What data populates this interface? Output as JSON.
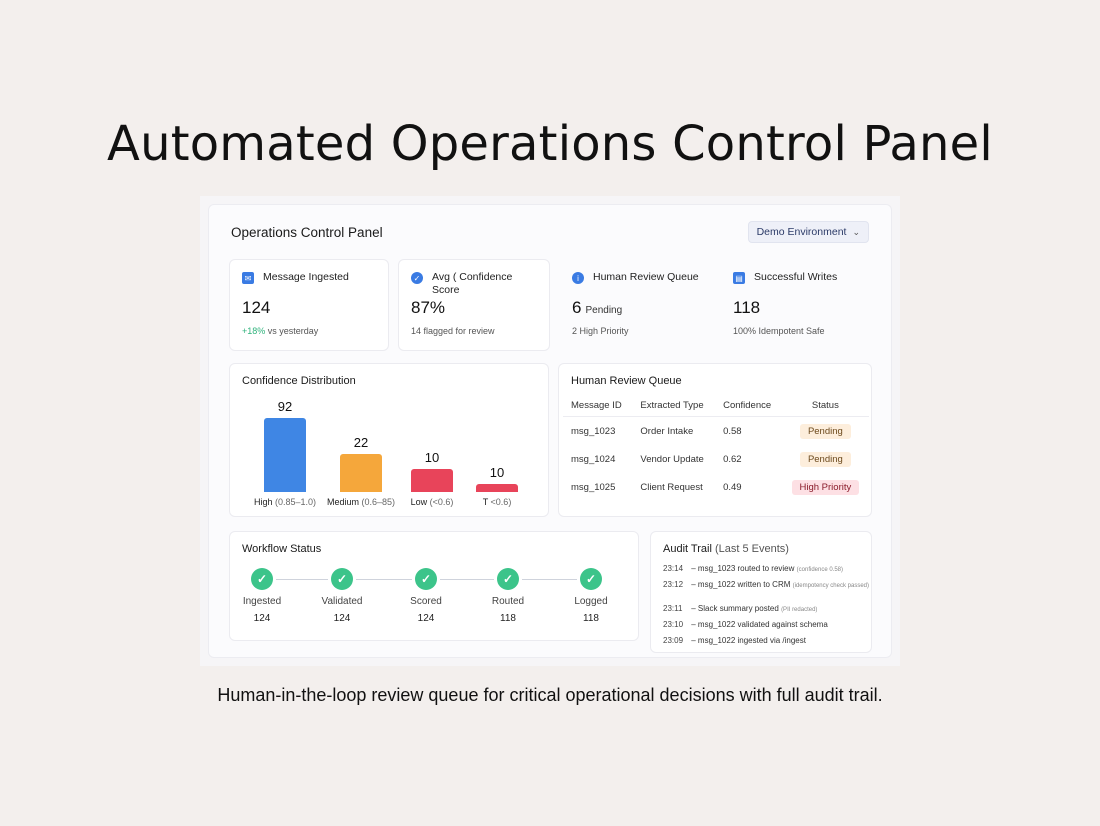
{
  "page": {
    "title": "Automated Operations Control Panel",
    "caption": "Human-in-the-loop review queue for critical operational decisions with full audit trail."
  },
  "panel": {
    "title": "Operations Control Panel",
    "environment": "Demo Environment"
  },
  "kpis": [
    {
      "label": "Message Ingested",
      "value": "124",
      "unit": "",
      "sub_highlight": "+18%",
      "sub": " vs yesterday",
      "icon": "mail-icon"
    },
    {
      "label": "Avg ( Confidence Score",
      "value": "87%",
      "unit": "",
      "sub_highlight": "",
      "sub": "14 flagged for review",
      "icon": "check-circle-icon"
    },
    {
      "label": "Human Review Queue",
      "value": "6",
      "unit": "Pending",
      "sub_highlight": "",
      "sub": "2 High Priority",
      "icon": "info-icon"
    },
    {
      "label": "Successful Writes",
      "value": "118",
      "unit": "",
      "sub_highlight": "",
      "sub": "100% Idempotent Safe",
      "icon": "document-icon"
    }
  ],
  "confidence": {
    "title": "Confidence Distribution"
  },
  "chart_data": {
    "type": "bar",
    "title": "Confidence Distribution",
    "categories": [
      "High",
      "Medium",
      "Low",
      "T"
    ],
    "ranges": [
      "(0.85–1.0)",
      "(0.6–85)",
      "(<0.6)",
      "<0.6)"
    ],
    "values": [
      92,
      22,
      10,
      10
    ],
    "colors": [
      "#3f86e4",
      "#f5a73b",
      "#e8445a",
      "#e8445a"
    ],
    "xlabel": "",
    "ylabel": "",
    "grid": false
  },
  "review_queue": {
    "title": "Human Review Queue",
    "headers": [
      "Message ID",
      "Extracted Type",
      "Confidence",
      "Status"
    ],
    "rows": [
      {
        "id": "msg_1023",
        "type": "Order Intake",
        "confidence": "0.58",
        "status": "Pending",
        "status_kind": "pending"
      },
      {
        "id": "msg_1024",
        "type": "Vendor Update",
        "confidence": "0.62",
        "status": "Pending",
        "status_kind": "pending"
      },
      {
        "id": "msg_1025",
        "type": "Client Request",
        "confidence": "0.49",
        "status": "High Priority",
        "status_kind": "high"
      }
    ]
  },
  "workflow": {
    "title": "Workflow Status",
    "steps": [
      {
        "label": "Ingested",
        "count": "124"
      },
      {
        "label": "Validated",
        "count": "124"
      },
      {
        "label": "Scored",
        "count": "124"
      },
      {
        "label": "Routed",
        "count": "118"
      },
      {
        "label": "Logged",
        "count": "118"
      }
    ]
  },
  "audit": {
    "title": "Audit Trail",
    "title_muted": "(Last 5 Events)",
    "events": [
      {
        "time": "23:14",
        "text": "msg_1023 routed to review",
        "note": "(confidence 0.58)"
      },
      {
        "time": "23:12",
        "text": "msg_1022 written to CRM",
        "note": "(idempotency check passed)"
      },
      {
        "time": "23:11",
        "text": "Slack summary posted",
        "note": "(PII redacted)"
      },
      {
        "time": "23:10",
        "text": "msg_1022 validated against schema",
        "note": ""
      },
      {
        "time": "23:09",
        "text": "msg_1022 ingested via /ingest",
        "note": ""
      }
    ]
  }
}
